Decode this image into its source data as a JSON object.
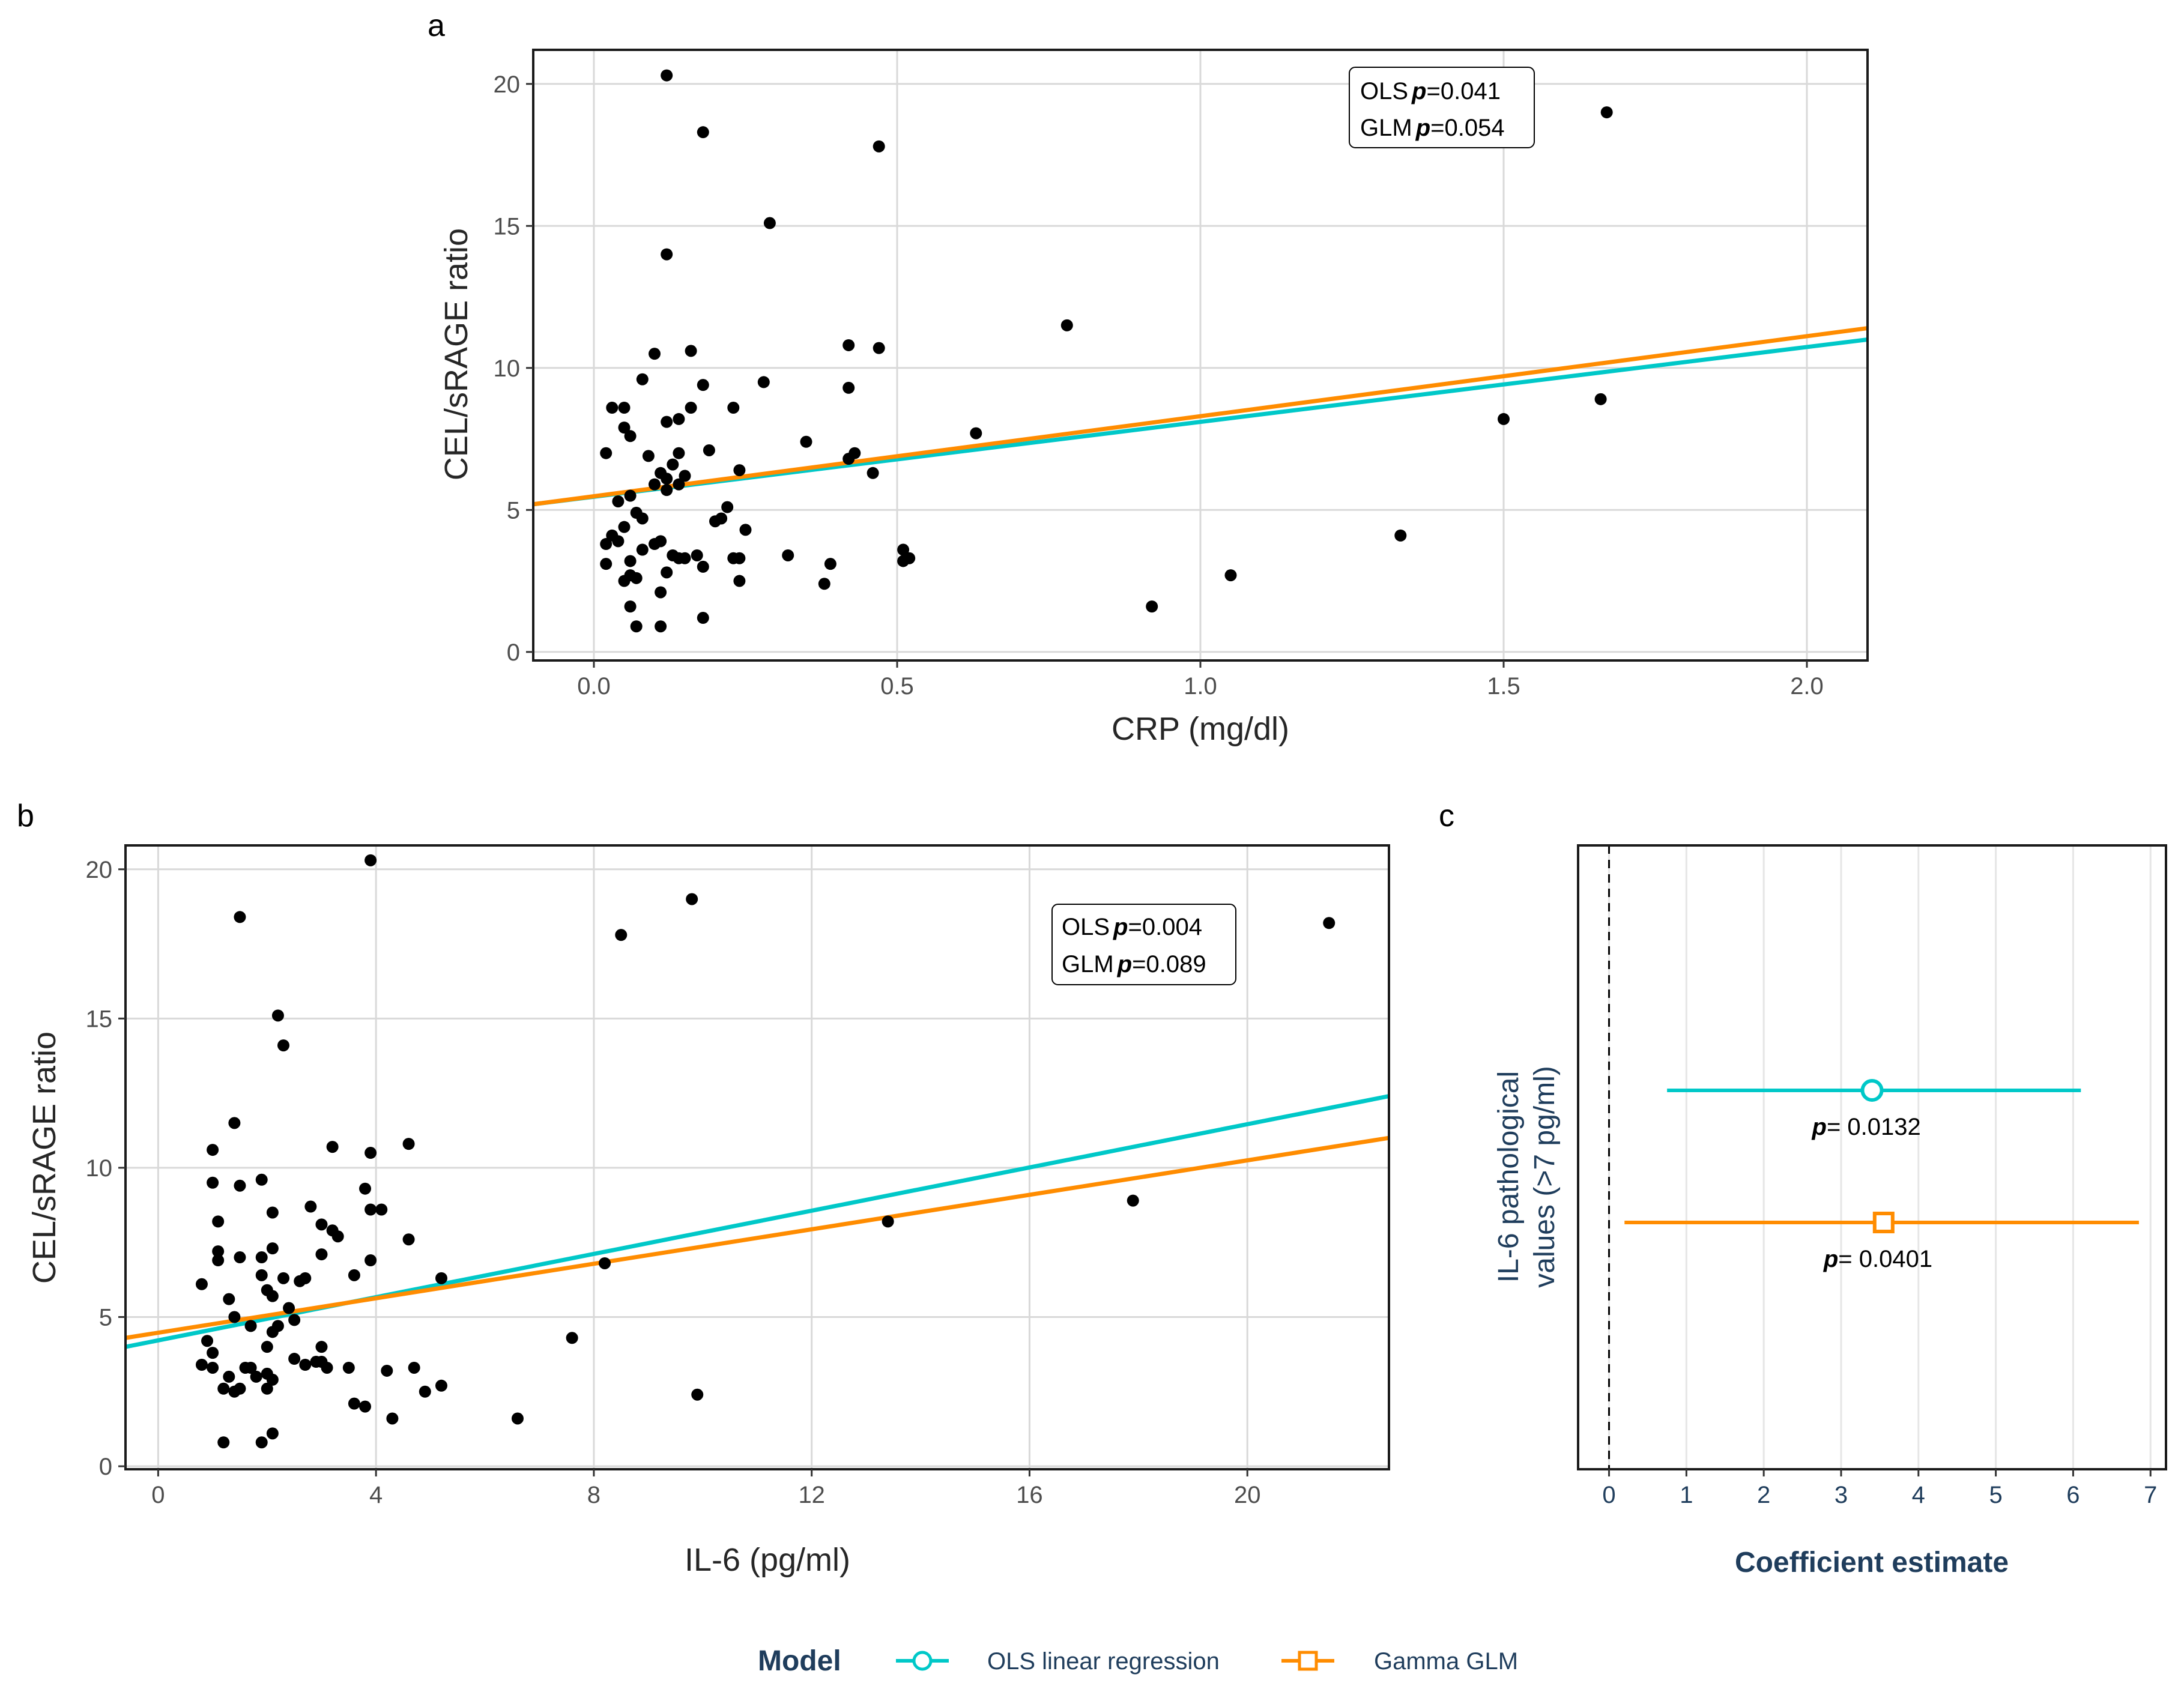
{
  "colors": {
    "ols": "#00c8c8",
    "glm": "#ff8c00",
    "point": "#000000",
    "grid": "#d9d9d9",
    "frame": "#1a1a1a",
    "navy": "#1f3d5c"
  },
  "chart_data": [
    {
      "id": "a",
      "panel_label": "a",
      "type": "scatter",
      "xlabel": "CRP (mg/dl)",
      "ylabel": "CEL/sRAGE ratio",
      "xlim": [
        -0.1,
        2.1
      ],
      "ylim": [
        -0.3,
        21.2
      ],
      "xticks": [
        0.0,
        0.5,
        1.0,
        1.5,
        2.0
      ],
      "xtick_labels": [
        "0.0",
        "0.5",
        "1.0",
        "1.5",
        "2.0"
      ],
      "yticks": [
        0,
        5,
        10,
        15,
        20
      ],
      "ytick_labels": [
        "0",
        "5",
        "10",
        "15",
        "20"
      ],
      "annotation": {
        "ols_label": "OLS",
        "ols_p": "p",
        "ols_value": "=0.041",
        "glm_label": "GLM",
        "glm_p": "p",
        "glm_value": "=0.054"
      },
      "fit_lines": [
        {
          "name": "OLS linear regression",
          "x": [
            -0.1,
            2.1
          ],
          "y": [
            5.2,
            11.0
          ]
        },
        {
          "name": "Gamma GLM",
          "x": [
            -0.1,
            2.1
          ],
          "y": [
            5.2,
            11.4
          ]
        }
      ],
      "points": [
        [
          0.12,
          20.3
        ],
        [
          0.18,
          18.3
        ],
        [
          0.47,
          17.8
        ],
        [
          1.67,
          19.0
        ],
        [
          0.29,
          15.1
        ],
        [
          0.12,
          14.0
        ],
        [
          0.78,
          11.5
        ],
        [
          0.1,
          10.5
        ],
        [
          0.16,
          10.6
        ],
        [
          0.42,
          10.8
        ],
        [
          0.47,
          10.7
        ],
        [
          0.08,
          9.6
        ],
        [
          0.18,
          9.4
        ],
        [
          0.28,
          9.5
        ],
        [
          0.42,
          9.3
        ],
        [
          0.03,
          8.6
        ],
        [
          0.05,
          8.6
        ],
        [
          0.14,
          8.2
        ],
        [
          0.12,
          8.1
        ],
        [
          0.16,
          8.6
        ],
        [
          0.23,
          8.6
        ],
        [
          0.05,
          7.9
        ],
        [
          0.06,
          7.6
        ],
        [
          0.35,
          7.4
        ],
        [
          0.63,
          7.7
        ],
        [
          1.5,
          8.2
        ],
        [
          1.66,
          8.9
        ],
        [
          0.02,
          7.0
        ],
        [
          0.09,
          6.9
        ],
        [
          0.14,
          7.0
        ],
        [
          0.19,
          7.1
        ],
        [
          0.13,
          6.6
        ],
        [
          0.11,
          6.3
        ],
        [
          0.12,
          6.1
        ],
        [
          0.15,
          6.2
        ],
        [
          0.24,
          6.4
        ],
        [
          0.43,
          7.0
        ],
        [
          0.42,
          6.8
        ],
        [
          0.46,
          6.3
        ],
        [
          0.06,
          5.5
        ],
        [
          0.12,
          5.7
        ],
        [
          0.1,
          5.9
        ],
        [
          0.04,
          5.3
        ],
        [
          0.14,
          5.9
        ],
        [
          0.07,
          4.9
        ],
        [
          0.08,
          4.7
        ],
        [
          0.05,
          4.4
        ],
        [
          0.21,
          4.7
        ],
        [
          0.2,
          4.6
        ],
        [
          0.22,
          5.1
        ],
        [
          0.03,
          4.1
        ],
        [
          0.04,
          3.9
        ],
        [
          0.02,
          3.8
        ],
        [
          0.08,
          3.6
        ],
        [
          0.1,
          3.8
        ],
        [
          0.11,
          3.9
        ],
        [
          0.13,
          3.4
        ],
        [
          0.14,
          3.3
        ],
        [
          0.15,
          3.3
        ],
        [
          0.17,
          3.4
        ],
        [
          0.23,
          3.3
        ],
        [
          0.24,
          3.3
        ],
        [
          0.25,
          4.3
        ],
        [
          0.02,
          3.1
        ],
        [
          0.06,
          3.2
        ],
        [
          0.32,
          3.4
        ],
        [
          0.51,
          3.6
        ],
        [
          0.51,
          3.2
        ],
        [
          0.52,
          3.3
        ],
        [
          0.18,
          3.0
        ],
        [
          0.06,
          2.7
        ],
        [
          0.05,
          2.5
        ],
        [
          0.07,
          2.6
        ],
        [
          0.12,
          2.8
        ],
        [
          0.24,
          2.5
        ],
        [
          0.39,
          3.1
        ],
        [
          0.38,
          2.4
        ],
        [
          0.11,
          2.1
        ],
        [
          0.06,
          1.6
        ],
        [
          0.18,
          1.2
        ],
        [
          0.07,
          0.9
        ],
        [
          0.11,
          0.9
        ],
        [
          0.92,
          1.6
        ],
        [
          1.05,
          2.7
        ],
        [
          1.33,
          4.1
        ]
      ]
    },
    {
      "id": "b",
      "panel_label": "b",
      "type": "scatter",
      "xlabel": "IL-6 (pg/ml)",
      "ylabel": "CEL/sRAGE ratio",
      "xlim": [
        -0.6,
        22.6
      ],
      "ylim": [
        -0.1,
        20.8
      ],
      "xticks": [
        0,
        4,
        8,
        12,
        16,
        20
      ],
      "xtick_labels": [
        "0",
        "4",
        "8",
        "12",
        "16",
        "20"
      ],
      "yticks": [
        0,
        5,
        10,
        15,
        20
      ],
      "ytick_labels": [
        "0",
        "5",
        "10",
        "15",
        "20"
      ],
      "annotation": {
        "ols_label": "OLS",
        "ols_p": "p",
        "ols_value": "=0.004",
        "glm_label": "GLM",
        "glm_p": "p",
        "glm_value": "=0.089"
      },
      "fit_lines": [
        {
          "name": "OLS linear regression",
          "x": [
            -0.6,
            22.6
          ],
          "y": [
            4.0,
            12.4
          ]
        },
        {
          "name": "Gamma GLM",
          "x": [
            -0.6,
            22.6
          ],
          "y": [
            4.3,
            11.0
          ]
        }
      ],
      "points": [
        [
          3.9,
          20.3
        ],
        [
          1.5,
          18.4
        ],
        [
          9.8,
          19.0
        ],
        [
          8.5,
          17.8
        ],
        [
          21.5,
          18.2
        ],
        [
          2.2,
          15.1
        ],
        [
          2.3,
          14.1
        ],
        [
          1.4,
          11.5
        ],
        [
          1.0,
          10.6
        ],
        [
          3.2,
          10.7
        ],
        [
          3.9,
          10.5
        ],
        [
          4.6,
          10.8
        ],
        [
          1.0,
          9.5
        ],
        [
          1.5,
          9.4
        ],
        [
          1.9,
          9.6
        ],
        [
          3.8,
          9.3
        ],
        [
          1.1,
          8.2
        ],
        [
          2.1,
          8.5
        ],
        [
          2.8,
          8.7
        ],
        [
          3.9,
          8.6
        ],
        [
          4.1,
          8.6
        ],
        [
          17.9,
          8.9
        ],
        [
          1.1,
          7.2
        ],
        [
          1.5,
          7.0
        ],
        [
          1.9,
          7.0
        ],
        [
          2.1,
          7.3
        ],
        [
          3.0,
          8.1
        ],
        [
          3.2,
          7.9
        ],
        [
          3.3,
          7.7
        ],
        [
          4.6,
          7.6
        ],
        [
          13.4,
          8.2
        ],
        [
          0.8,
          6.1
        ],
        [
          1.1,
          6.9
        ],
        [
          1.9,
          6.4
        ],
        [
          2.3,
          6.3
        ],
        [
          2.6,
          6.2
        ],
        [
          2.7,
          6.3
        ],
        [
          3.0,
          7.1
        ],
        [
          3.6,
          6.4
        ],
        [
          3.9,
          6.9
        ],
        [
          5.2,
          6.3
        ],
        [
          8.2,
          6.8
        ],
        [
          1.3,
          5.6
        ],
        [
          1.4,
          5.0
        ],
        [
          1.7,
          4.7
        ],
        [
          2.0,
          5.9
        ],
        [
          2.1,
          5.7
        ],
        [
          2.4,
          5.3
        ],
        [
          2.5,
          4.9
        ],
        [
          2.2,
          4.7
        ],
        [
          0.9,
          4.2
        ],
        [
          1.0,
          3.8
        ],
        [
          2.0,
          4.0
        ],
        [
          2.1,
          4.5
        ],
        [
          3.0,
          4.0
        ],
        [
          7.6,
          4.3
        ],
        [
          0.8,
          3.4
        ],
        [
          1.0,
          3.3
        ],
        [
          1.3,
          3.0
        ],
        [
          1.7,
          3.3
        ],
        [
          1.8,
          3.0
        ],
        [
          2.0,
          3.1
        ],
        [
          2.1,
          2.9
        ],
        [
          2.7,
          3.4
        ],
        [
          2.9,
          3.5
        ],
        [
          3.0,
          3.5
        ],
        [
          3.1,
          3.3
        ],
        [
          3.5,
          3.3
        ],
        [
          4.2,
          3.2
        ],
        [
          4.7,
          3.3
        ],
        [
          1.2,
          2.6
        ],
        [
          1.4,
          2.5
        ],
        [
          1.5,
          2.6
        ],
        [
          2.0,
          2.6
        ],
        [
          3.6,
          2.1
        ],
        [
          3.8,
          2.0
        ],
        [
          4.9,
          2.5
        ],
        [
          5.2,
          2.7
        ],
        [
          9.9,
          2.4
        ],
        [
          1.2,
          0.8
        ],
        [
          1.9,
          0.8
        ],
        [
          2.1,
          1.1
        ],
        [
          4.3,
          1.6
        ],
        [
          6.6,
          1.6
        ],
        [
          1.6,
          3.3
        ],
        [
          2.5,
          3.6
        ]
      ]
    },
    {
      "id": "c",
      "panel_label": "c",
      "type": "forest",
      "xlabel": "Coefficient estimate",
      "ylabel_line1": "IL-6 pathological",
      "ylabel_line2": "values (>7 pg/ml)",
      "xlim": [
        -0.4,
        7.2
      ],
      "xticks": [
        0,
        1,
        2,
        3,
        4,
        5,
        6,
        7
      ],
      "xtick_labels": [
        "0",
        "1",
        "2",
        "3",
        "4",
        "5",
        "6",
        "7"
      ],
      "reference_line": 0,
      "estimates": [
        {
          "name": "OLS linear regression",
          "estimate": 3.4,
          "ci_low": 0.75,
          "ci_high": 6.1,
          "p_prefix": "p",
          "p_text": "= 0.0132"
        },
        {
          "name": "Gamma GLM",
          "estimate": 3.55,
          "ci_low": 0.2,
          "ci_high": 6.85,
          "p_prefix": "p",
          "p_text": "= 0.0401"
        }
      ]
    }
  ],
  "legend": {
    "title": "Model",
    "items": [
      {
        "label": "OLS linear regression",
        "marker": "circle"
      },
      {
        "label": "Gamma GLM",
        "marker": "square"
      }
    ]
  }
}
